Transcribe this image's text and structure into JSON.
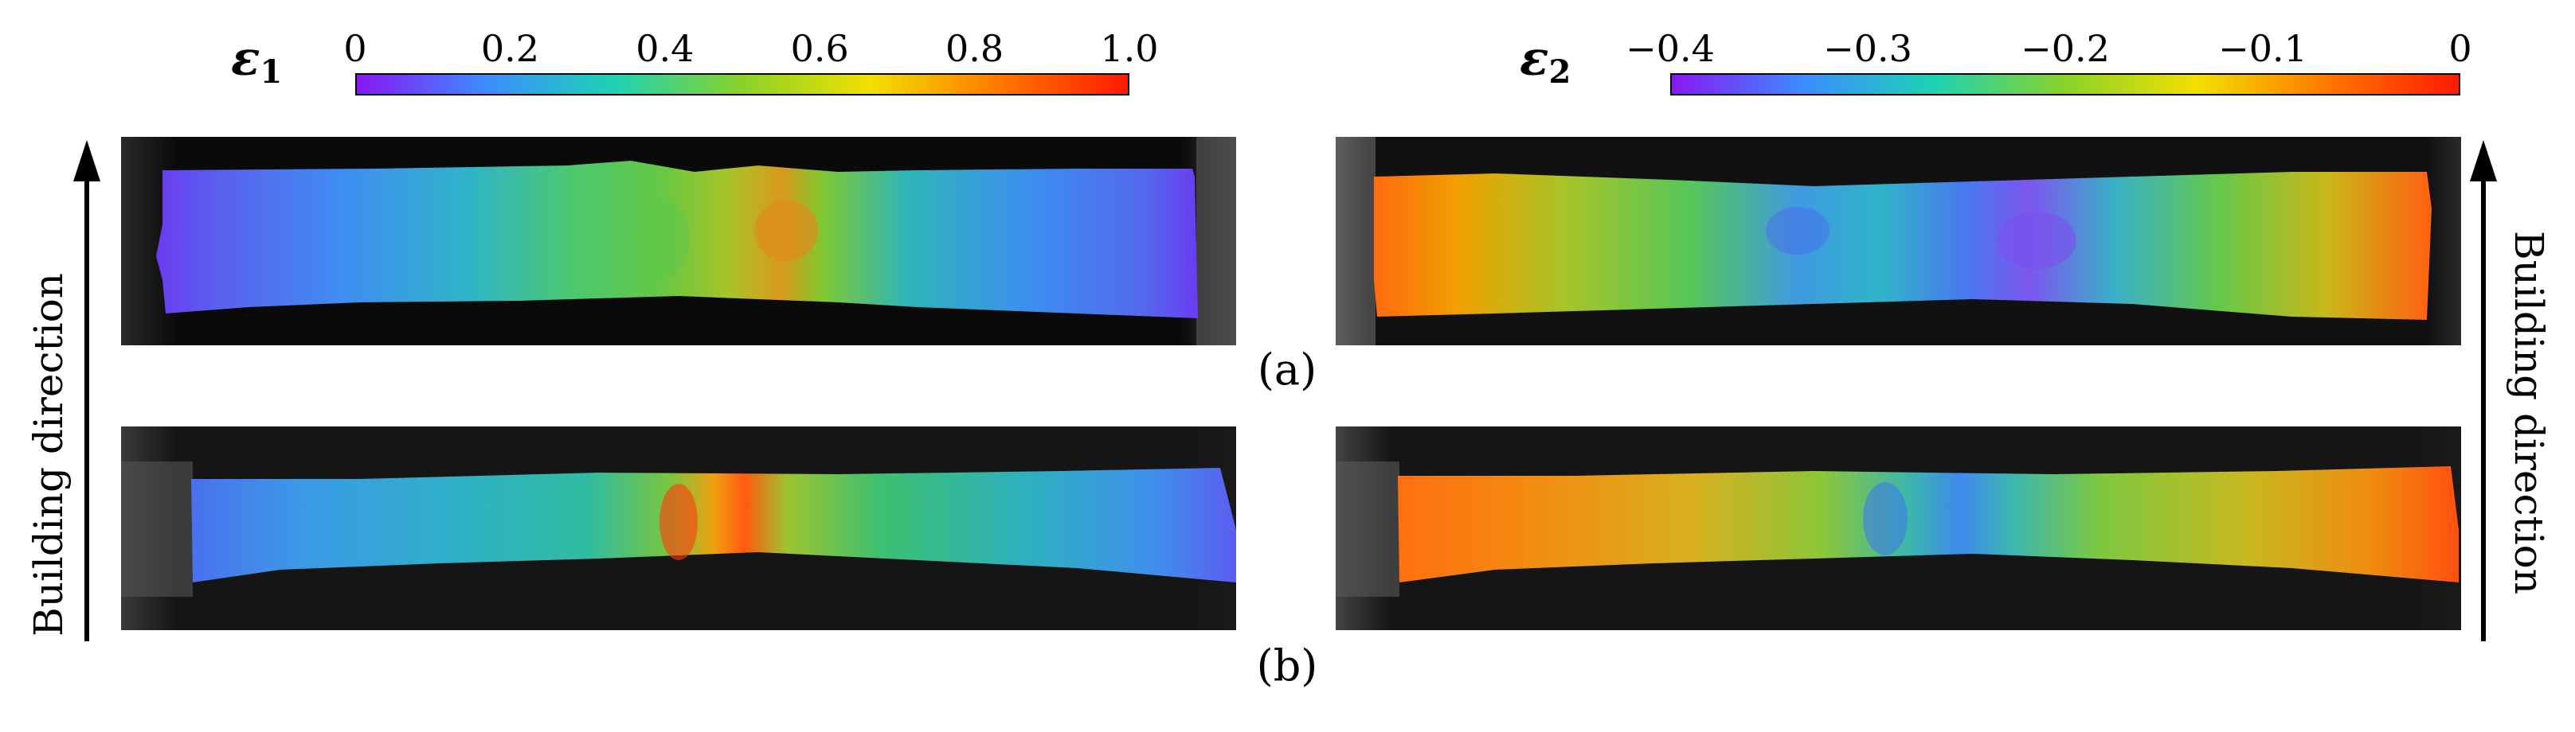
{
  "colorbars": {
    "eps1": {
      "symbol": "ε",
      "subscript": "1",
      "ticks": [
        "0",
        "0.2",
        "0.4",
        "0.6",
        "0.8",
        "1.0"
      ],
      "colors": [
        "#8a17f2",
        "#3c8cff",
        "#1ed2b4",
        "#8ad22a",
        "#f2e000",
        "#ff7800",
        "#ff1a00"
      ]
    },
    "eps2": {
      "symbol": "ε",
      "subscript": "2",
      "ticks": [
        "−0.4",
        "−0.3",
        "−0.2",
        "−0.1",
        "0"
      ],
      "colors": [
        "#8a17f2",
        "#3c8cff",
        "#1ed2b4",
        "#8ad22a",
        "#f2e000",
        "#ff7800",
        "#ff1a00"
      ]
    }
  },
  "captions": {
    "a": "(a)",
    "b": "(b)"
  },
  "building_direction": "Building direction"
}
